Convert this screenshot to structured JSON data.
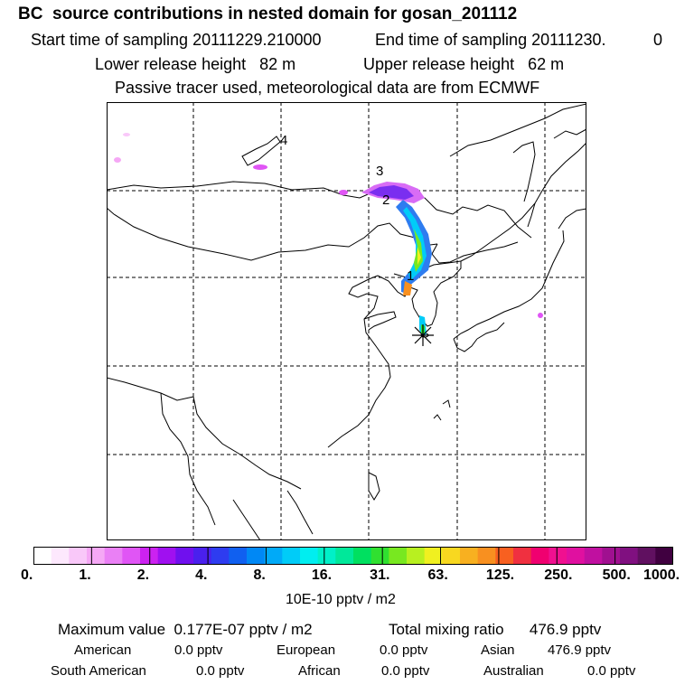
{
  "header": {
    "title": "BC  source contributions in nested domain for gosan_201112",
    "start_label": "Start time of sampling 20111229.210000",
    "end_label": "End time of sampling 20111230.",
    "end_hour": "0",
    "lower_release": "Lower release height   82 m",
    "upper_release": "Upper release height   62 m",
    "tracer_note": "Passive tracer used, meteorological data are from ECMWF"
  },
  "map": {
    "trajectory_labels": [
      "1",
      "2",
      "3",
      "4"
    ],
    "receptor_marker": "star-icon"
  },
  "colorbar": {
    "ticks": [
      "0.",
      "1.",
      "2.",
      "4.",
      "8.",
      "16.",
      "31.",
      "63.",
      "125.",
      "250.",
      "500.",
      "1000."
    ],
    "units": "10E-10 pptv / m2",
    "colors": [
      "#ffffff",
      "#fde8fd",
      "#f9c8f9",
      "#f5a8f5",
      "#ea80f5",
      "#e055f5",
      "#cc22f0",
      "#a010f0",
      "#7010ee",
      "#4a20ee",
      "#2e3cf0",
      "#1060f0",
      "#0088f5",
      "#00aaf8",
      "#00ccf8",
      "#00eef0",
      "#00f0c8",
      "#00e89a",
      "#00e060",
      "#30e030",
      "#78e820",
      "#b8f020",
      "#f0f020",
      "#f8d820",
      "#f8b020",
      "#f89020",
      "#f86020",
      "#f03040",
      "#f00070",
      "#f01090",
      "#e010a0",
      "#c010a0",
      "#a01090",
      "#801080",
      "#601060",
      "#400040"
    ]
  },
  "summary": {
    "max_value": "Maximum value  0.177E-07 pptv / m2",
    "total_mixing": "Total mixing ratio      476.9 pptv",
    "american_label": "American",
    "american_value": "0.0 pptv",
    "european_label": "European",
    "european_value": "0.0 pptv",
    "asian_label": "Asian",
    "asian_value": "476.9 pptv",
    "south_american_label": "South American",
    "south_american_value": "0.0 pptv",
    "african_label": "African",
    "african_value": "0.0 pptv",
    "australian_label": "Australian",
    "australian_value": "0.0 pptv"
  }
}
